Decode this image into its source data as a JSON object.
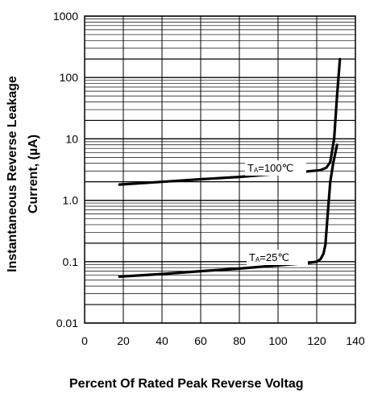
{
  "chart_data": {
    "type": "line",
    "xlabel": "Percent Of Rated Peak Reverse Voltag",
    "ylabel_lines": [
      "Instantaneous Reverse  Leakage",
      "Current, (µA)"
    ],
    "x_ticks": [
      {
        "value": 0,
        "label": "0"
      },
      {
        "value": 20,
        "label": "20"
      },
      {
        "value": 40,
        "label": "40"
      },
      {
        "value": 60,
        "label": "60"
      },
      {
        "value": 80,
        "label": "80"
      },
      {
        "value": 100,
        "label": "100"
      },
      {
        "value": 120,
        "label": "120"
      },
      {
        "value": 140,
        "label": "140"
      }
    ],
    "y_ticks": [
      {
        "value": 0.01,
        "label": "0.01"
      },
      {
        "value": 0.1,
        "label": "0.1"
      },
      {
        "value": 1,
        "label": "1.0"
      },
      {
        "value": 10,
        "label": "10"
      },
      {
        "value": 100,
        "label": "100"
      },
      {
        "value": 1000,
        "label": "1000"
      }
    ],
    "xlim": [
      0,
      140
    ],
    "ylim": [
      0.01,
      1000
    ],
    "yscale": "log",
    "grid": true,
    "series": [
      {
        "name": "TA=100℃",
        "label_sub": "A",
        "label_main": "T",
        "label_rest": "=100℃",
        "x": [
          18,
          40,
          60,
          80,
          100,
          115,
          122,
          125,
          127,
          129,
          130.5,
          132
        ],
        "y": [
          1.8,
          2.0,
          2.2,
          2.4,
          2.7,
          2.95,
          3.1,
          3.4,
          4.2,
          10,
          50,
          200
        ]
      },
      {
        "name": "TA=25℃",
        "label_sub": "A",
        "label_main": "T",
        "label_rest": "=25℃",
        "x": [
          18,
          40,
          60,
          80,
          100,
          115,
          120,
          122,
          123.5,
          124.5,
          125.5,
          127,
          128.5,
          130.5
        ],
        "y": [
          0.057,
          0.063,
          0.07,
          0.077,
          0.087,
          0.095,
          0.1,
          0.11,
          0.135,
          0.19,
          0.5,
          2,
          4,
          8
        ]
      }
    ]
  }
}
